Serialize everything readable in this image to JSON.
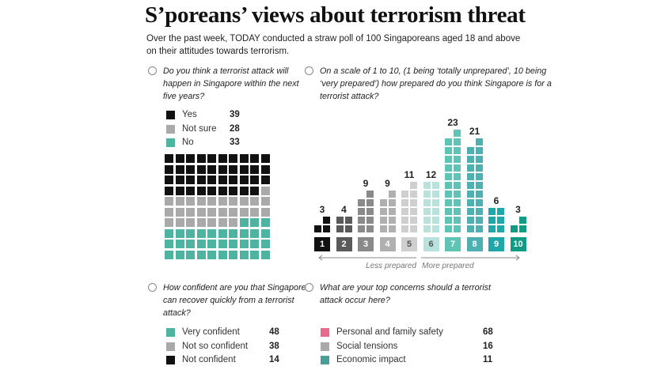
{
  "title": "S’poreans’ views about terrorism threat",
  "intro": "Over the past week, TODAY conducted a straw poll of 100 Singaporeans aged 18 and above on their attitudes towards terrorism.",
  "chart_data": [
    {
      "type": "waffle",
      "title": "Do you think a terrorist attack will happen in Singapore within the next five years?",
      "categories": [
        "Yes",
        "Not sure",
        "No"
      ],
      "values": [
        39,
        28,
        33
      ],
      "colors": [
        "#111111",
        "#aaaaaa",
        "#4fb3a2"
      ]
    },
    {
      "type": "bar",
      "title": "On a scale of 1 to 10, (1 being ‘totally unprepared’, 10 being ‘very prepared’) how prepared do you think Singapore is for a terrorist attack?",
      "categories": [
        "1",
        "2",
        "3",
        "4",
        "5",
        "6",
        "7",
        "8",
        "9",
        "10"
      ],
      "values": [
        3,
        4,
        9,
        9,
        11,
        12,
        23,
        21,
        6,
        3
      ],
      "colors": [
        "#111111",
        "#5a5a5a",
        "#8a8a8a",
        "#b0b0b0",
        "#cfcfcf",
        "#b8e2dc",
        "#5ec4b4",
        "#4fb0b2",
        "#1fa7aa",
        "#139a85"
      ],
      "axis_labels": {
        "left": "Less prepared",
        "right": "More prepared"
      }
    },
    {
      "type": "legend-table",
      "title": "How confident are you that Singapore can recover quickly from a terrorist attack?",
      "categories": [
        "Very confident",
        "Not so confident",
        "Not confident"
      ],
      "values": [
        48,
        38,
        14
      ],
      "colors": [
        "#4fb3a2",
        "#aaaaaa",
        "#111111"
      ]
    },
    {
      "type": "legend-table",
      "title": "What are your top concerns should a terrorist attack occur here?",
      "categories": [
        "Personal and family safety",
        "Social tensions",
        "Economic impact"
      ],
      "values": [
        68,
        16,
        11
      ],
      "colors": [
        "#e86a8c",
        "#aaaaaa",
        "#4a9e98"
      ]
    }
  ]
}
